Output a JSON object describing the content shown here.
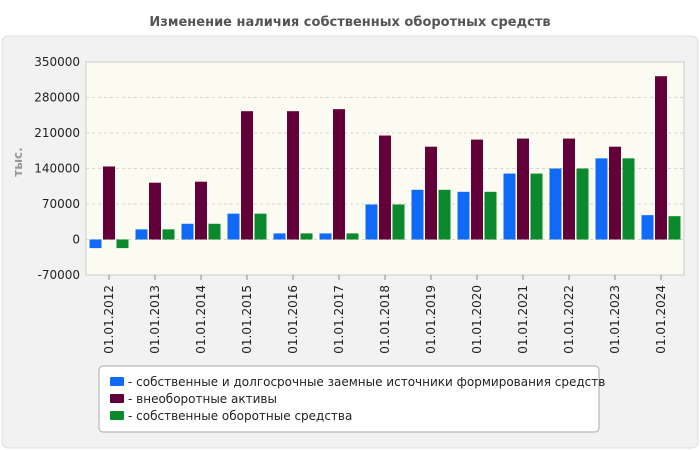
{
  "chart_data": {
    "type": "bar",
    "title": "Изменение наличия собственных оборотных средств",
    "ylabel": "тыс.",
    "xlabel": "",
    "ylim": [
      -70000,
      350000
    ],
    "yticks": [
      350000,
      280000,
      210000,
      140000,
      70000,
      0,
      -70000
    ],
    "grid": true,
    "legend_position": "bottom",
    "categories": [
      "01.01.2012",
      "01.01.2013",
      "01.01.2014",
      "01.01.2015",
      "01.01.2016",
      "01.01.2017",
      "01.01.2018",
      "01.01.2019",
      "01.01.2020",
      "01.01.2021",
      "01.01.2022",
      "01.01.2023",
      "01.01.2024"
    ],
    "series": [
      {
        "name": "- собственные и долгосрочные заемные источники формирования средств",
        "color": "#0f6bf7",
        "values": [
          -17000,
          20000,
          31000,
          51000,
          12000,
          12000,
          69000,
          98000,
          94000,
          130000,
          140000,
          160000,
          48000
        ]
      },
      {
        "name": "- внеоборотные активы",
        "color": "#63003a",
        "values": [
          144000,
          112000,
          114000,
          253000,
          253000,
          257000,
          205000,
          183000,
          197000,
          199000,
          199000,
          183000,
          322000
        ]
      },
      {
        "name": "- собственные оборотные средства",
        "color": "#0a8a2d",
        "values": [
          -17000,
          20000,
          31000,
          51000,
          12000,
          12000,
          69000,
          98000,
          94000,
          130000,
          140000,
          160000,
          46000
        ]
      }
    ]
  }
}
